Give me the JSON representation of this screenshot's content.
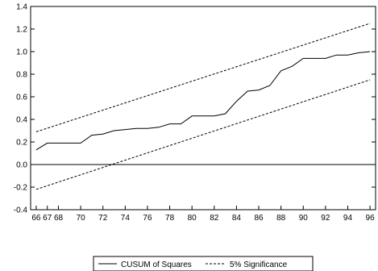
{
  "chart_data": {
    "type": "line",
    "title": "",
    "xlabel": "",
    "ylabel": "",
    "xlim": [
      65.5,
      96.5
    ],
    "ylim": [
      -0.4,
      1.4
    ],
    "x_ticks": [
      "66",
      "67",
      "68",
      "70",
      "72",
      "74",
      "76",
      "78",
      "80",
      "82",
      "84",
      "86",
      "88",
      "90",
      "92",
      "94",
      "96"
    ],
    "y_ticks": [
      "1.4",
      "1.2",
      "1.0",
      "0.8",
      "0.6",
      "0.4",
      "0.2",
      "0.0",
      "-0.2",
      "-0.4"
    ],
    "reference_line_y": 0.0,
    "grid": false,
    "legend_position": "bottom",
    "series": [
      {
        "name": "CUSUM of Squares",
        "style": "solid",
        "x": [
          66,
          67,
          68,
          69,
          70,
          71,
          72,
          73,
          74,
          75,
          76,
          77,
          78,
          79,
          80,
          81,
          82,
          83,
          84,
          85,
          86,
          87,
          88,
          89,
          90,
          91,
          92,
          93,
          94,
          95,
          96
        ],
        "y": [
          0.13,
          0.19,
          0.19,
          0.19,
          0.19,
          0.26,
          0.27,
          0.3,
          0.31,
          0.32,
          0.32,
          0.33,
          0.36,
          0.36,
          0.43,
          0.43,
          0.43,
          0.45,
          0.56,
          0.65,
          0.66,
          0.7,
          0.83,
          0.87,
          0.94,
          0.94,
          0.94,
          0.97,
          0.97,
          0.99,
          1.0
        ]
      },
      {
        "name": "5% Significance",
        "style": "dashed",
        "segments": [
          {
            "x": [
              66,
              96
            ],
            "y": [
              0.29,
              1.25
            ]
          },
          {
            "x": [
              66,
              96
            ],
            "y": [
              -0.22,
              0.75
            ]
          }
        ]
      }
    ]
  }
}
